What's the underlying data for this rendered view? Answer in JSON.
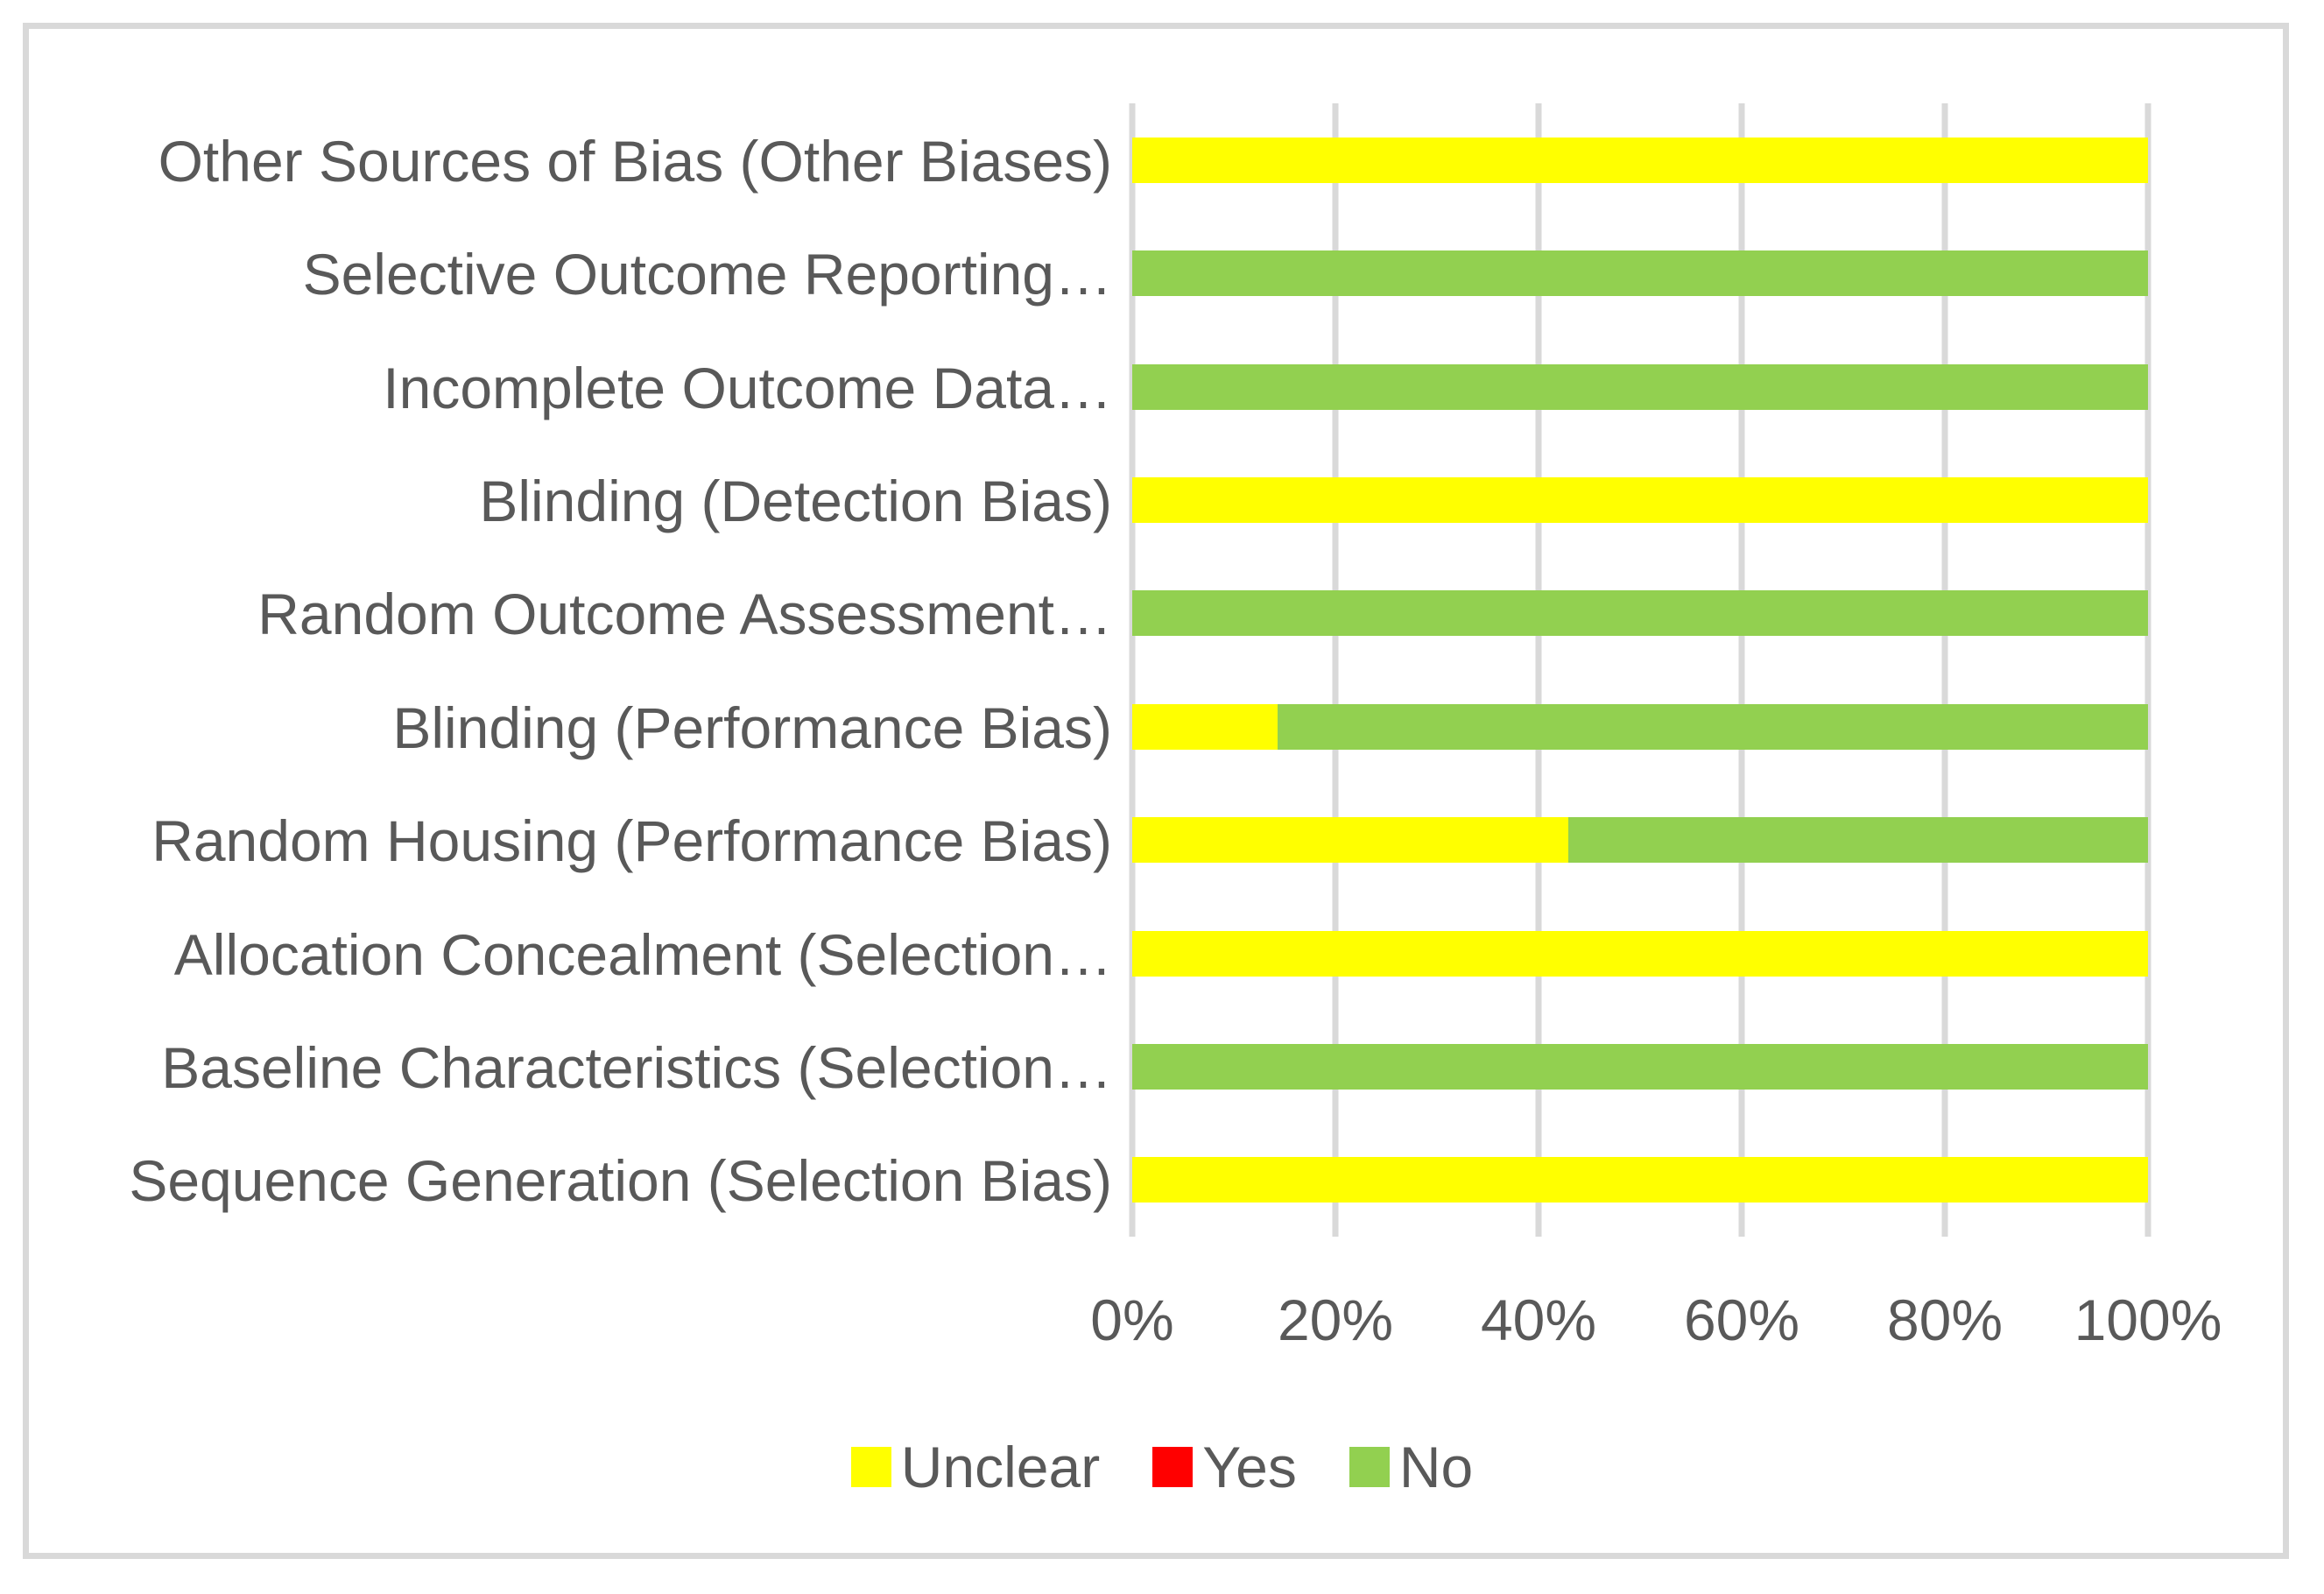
{
  "colors": {
    "text": "#595959",
    "gridline": "#D9D9D9",
    "frame_border": "#D9D9D9",
    "background": "#FFFFFF",
    "unclear": "#FFFF00",
    "yes": "#FF0000",
    "no": "#92D050"
  },
  "chart_data": {
    "type": "bar",
    "orientation": "horizontal",
    "stacked": true,
    "title": "",
    "xlabel": "",
    "ylabel": "",
    "categories": [
      "Other Sources of Bias (Other Biases)",
      "Selective Outcome Reporting…",
      "Incomplete Outcome Data…",
      "Blinding (Detection Bias)",
      "Random Outcome Assessment…",
      "Blinding (Performance Bias)",
      "Random Housing (Performance Bias)",
      "Allocation Concealment (Selection…",
      "Baseline Characteristics (Selection…",
      "Sequence Generation (Selection Bias)"
    ],
    "series": [
      {
        "name": "Unclear",
        "color": "#FFFF00",
        "values": [
          100,
          0,
          0,
          100,
          0,
          14.3,
          42.9,
          100,
          0,
          100
        ]
      },
      {
        "name": "Yes",
        "color": "#FF0000",
        "values": [
          0,
          0,
          0,
          0,
          0,
          0,
          0,
          0,
          0,
          0
        ]
      },
      {
        "name": "No",
        "color": "#92D050",
        "values": [
          0,
          100,
          100,
          0,
          100,
          85.7,
          57.1,
          0,
          100,
          0
        ]
      }
    ],
    "x_axis": {
      "range": [
        0,
        100
      ],
      "tick_labels": [
        "0%",
        "20%",
        "40%",
        "60%",
        "80%",
        "100%"
      ],
      "gridlines": true
    },
    "legend": {
      "position": "bottom",
      "entries": [
        "Unclear",
        "Yes",
        "No"
      ]
    }
  }
}
